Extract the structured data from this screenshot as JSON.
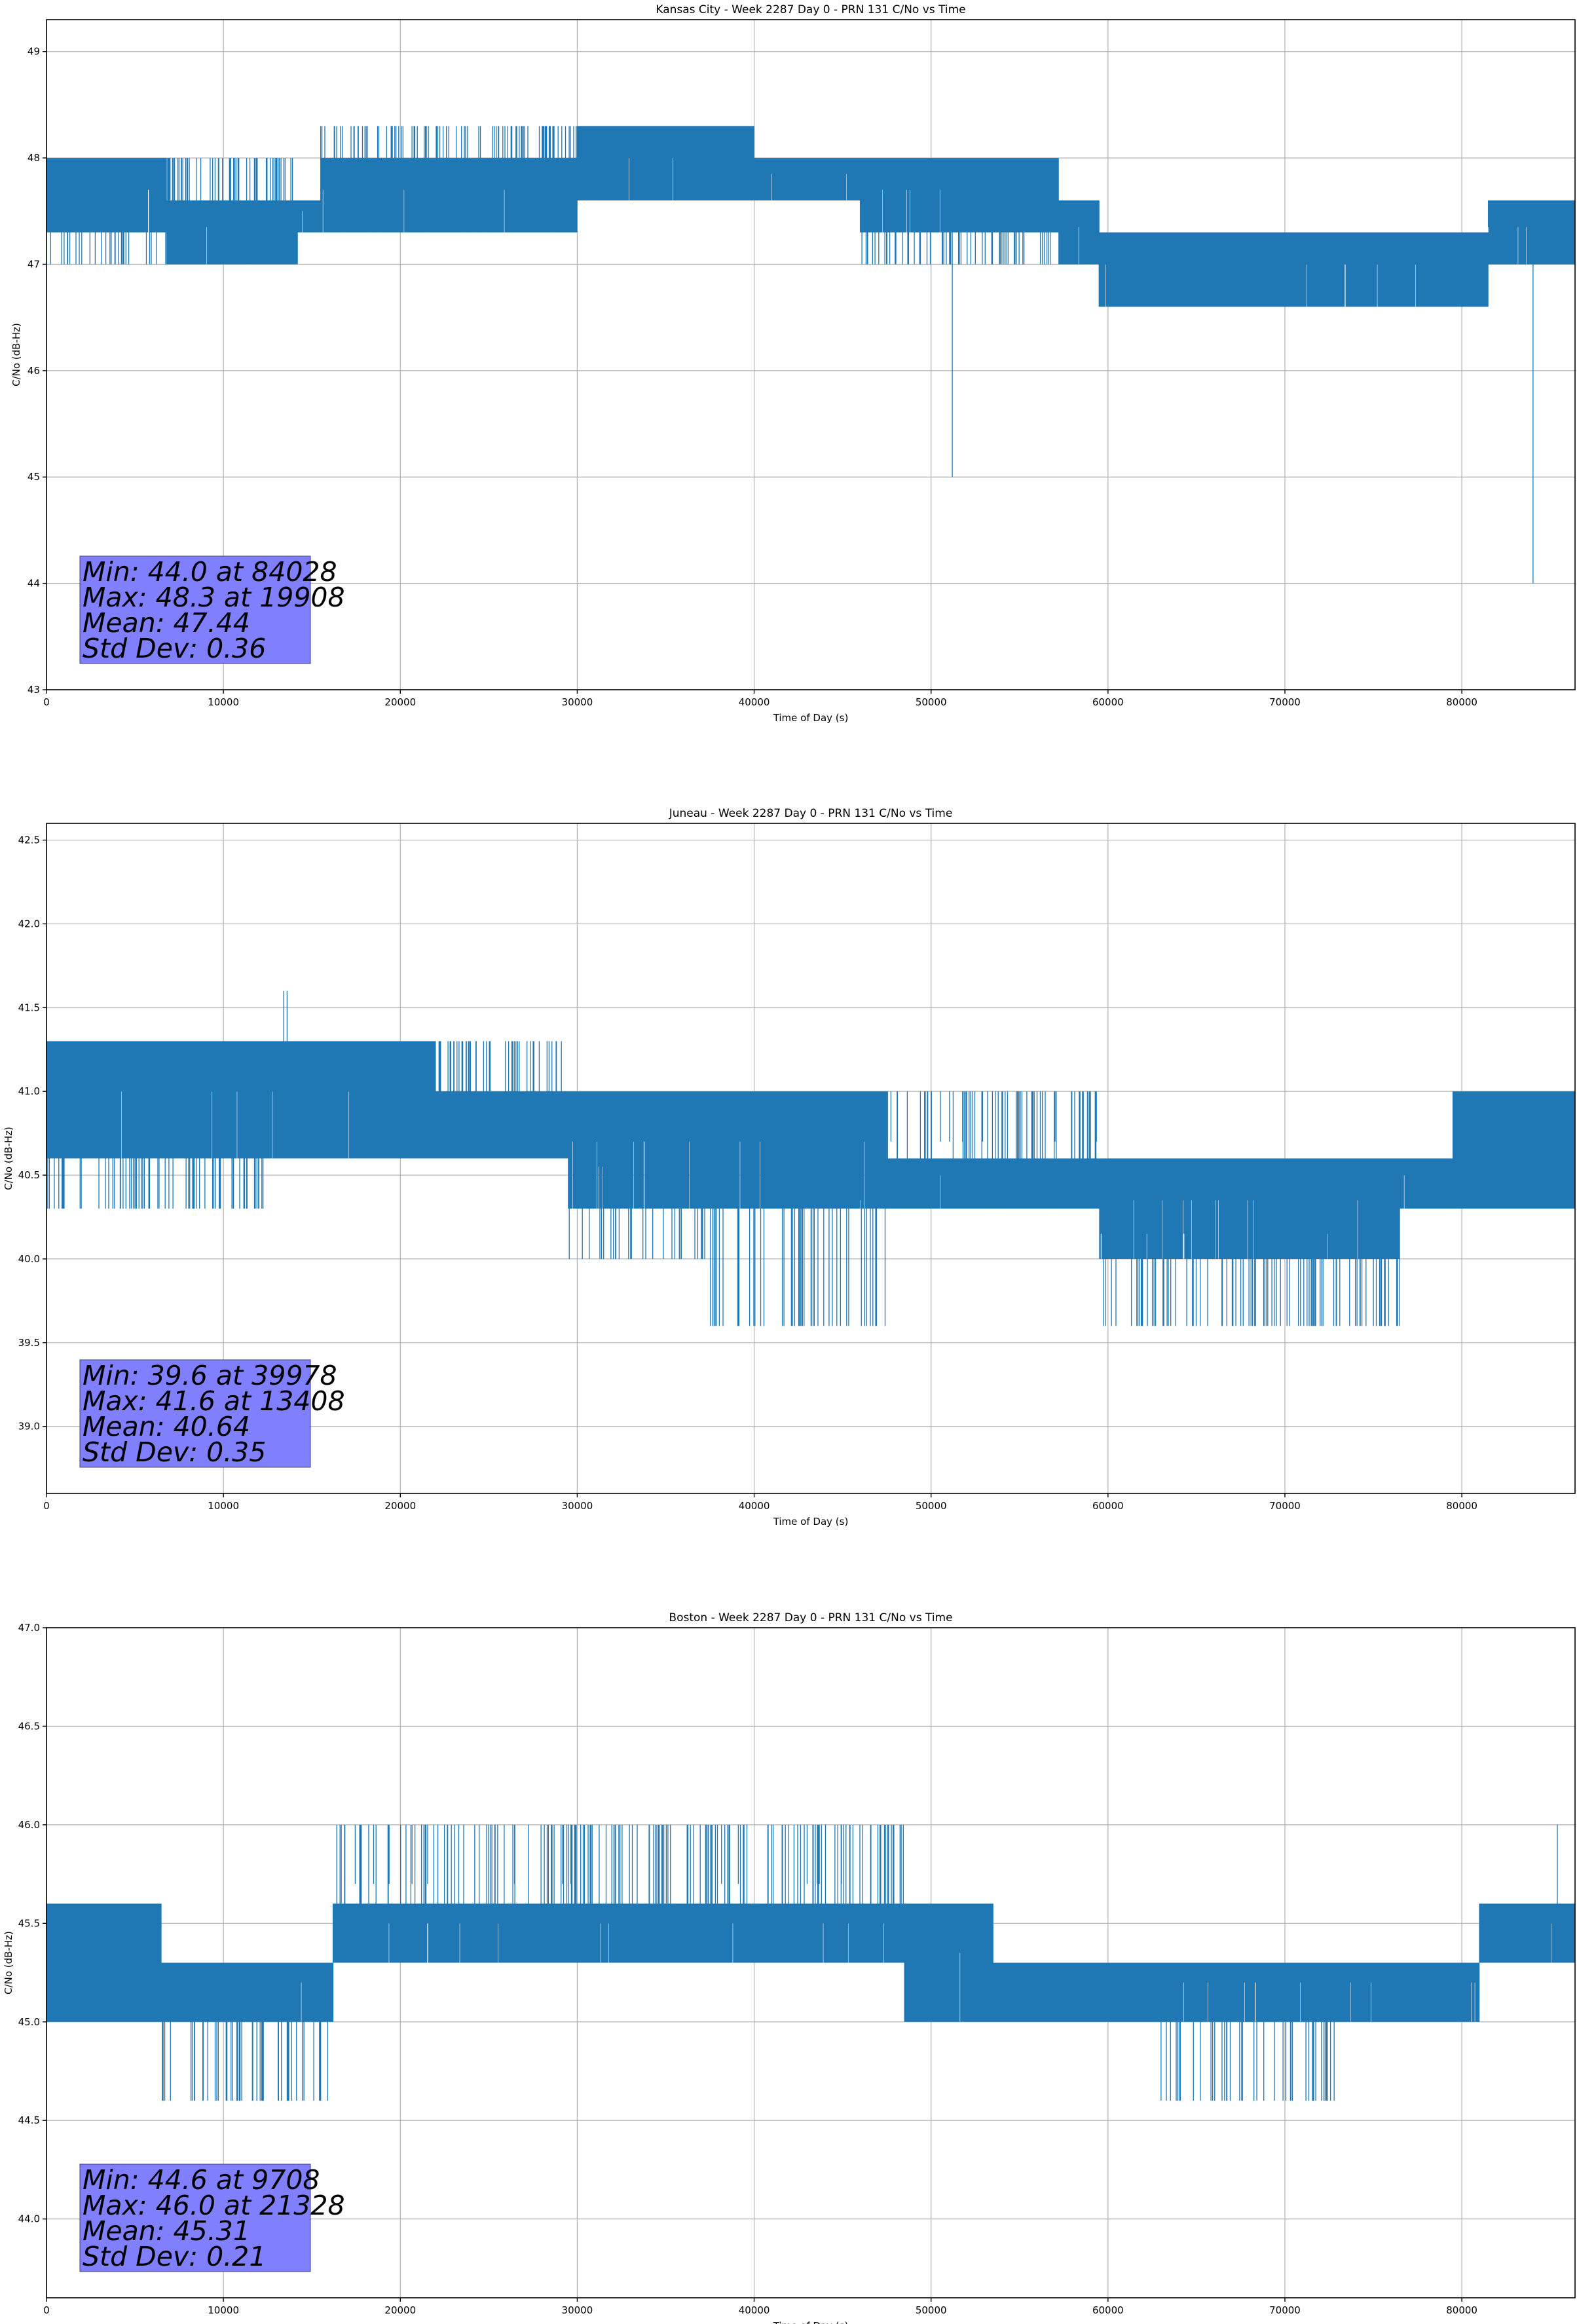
{
  "figure": {
    "background": "#ffffff",
    "series_color": "#1f77b4",
    "stats_box_color": "#8080ff"
  },
  "chart_data": [
    {
      "type": "line",
      "title": "Kansas City - Week 2287 Day 0 - PRN 131 C/No vs Time",
      "xlabel": "Time of Day (s)",
      "ylabel": "C/No (dB-Hz)",
      "xlim": [
        0,
        86400
      ],
      "ylim": [
        43,
        49.3
      ],
      "xticks": [
        0,
        10000,
        20000,
        30000,
        40000,
        50000,
        60000,
        70000,
        80000
      ],
      "yticks": [
        43,
        44,
        45,
        46,
        47,
        48,
        49
      ],
      "ytick_decimals": 0,
      "grid": true,
      "stats": [
        "Min: 44.0 at 84028",
        "Max: 48.3 at 19908",
        "Mean: 47.44",
        "Std Dev: 0.36"
      ],
      "series": [
        {
          "color": "#1f77b4",
          "bands": [
            {
              "x": [
                0,
                6800
              ],
              "low": 47.3,
              "high": 48.0,
              "sparse_low": 47.0
            },
            {
              "x": [
                6800,
                14200
              ],
              "low": 47.0,
              "high": 47.6,
              "sparse_high": 48.0
            },
            {
              "x": [
                14200,
                15500
              ],
              "low": 47.3,
              "high": 47.6
            },
            {
              "x": [
                15500,
                30000
              ],
              "low": 47.3,
              "high": 48.0,
              "sparse_high": 48.3
            },
            {
              "x": [
                30000,
                40000
              ],
              "low": 47.6,
              "high": 48.3
            },
            {
              "x": [
                40000,
                46000
              ],
              "low": 47.6,
              "high": 48.0
            },
            {
              "x": [
                46000,
                57200
              ],
              "low": 47.3,
              "high": 48.0,
              "sparse_low": 47.0
            },
            {
              "x": [
                57200,
                59500
              ],
              "low": 47.0,
              "high": 47.6
            },
            {
              "x": [
                59500,
                81500
              ],
              "low": 46.6,
              "high": 47.3
            },
            {
              "x": [
                81500,
                86400
              ],
              "low": 47.0,
              "high": 47.6
            }
          ],
          "spikes": [
            {
              "x": 51200,
              "low": 45.0,
              "high": 47.6
            },
            {
              "x": 84028,
              "low": 44.0,
              "high": 47.3
            },
            {
              "x": 19908,
              "low": 47.6,
              "high": 48.3
            },
            {
              "x": 23800,
              "low": 47.6,
              "high": 48.3
            }
          ]
        }
      ]
    },
    {
      "type": "line",
      "title": "Juneau - Week 2287 Day 0 - PRN 131 C/No vs Time",
      "xlabel": "Time of Day (s)",
      "ylabel": "C/No (dB-Hz)",
      "xlim": [
        0,
        86400
      ],
      "ylim": [
        38.6,
        42.6
      ],
      "xticks": [
        0,
        10000,
        20000,
        30000,
        40000,
        50000,
        60000,
        70000,
        80000
      ],
      "yticks": [
        39.0,
        39.5,
        40.0,
        40.5,
        41.0,
        41.5,
        42.0,
        42.5
      ],
      "ytick_decimals": 1,
      "grid": true,
      "stats": [
        "Min: 39.6 at 39978",
        "Max: 41.6 at 13408",
        "Mean: 40.64",
        "Std Dev: 0.35"
      ],
      "series": [
        {
          "color": "#1f77b4",
          "bands": [
            {
              "x": [
                0,
                12500
              ],
              "low": 40.6,
              "high": 41.3,
              "sparse_low": 40.3
            },
            {
              "x": [
                12500,
                22000
              ],
              "low": 40.6,
              "high": 41.3
            },
            {
              "x": [
                22000,
                29500
              ],
              "low": 40.6,
              "high": 41.0,
              "sparse_high": 41.3
            },
            {
              "x": [
                29500,
                37500
              ],
              "low": 40.3,
              "high": 41.0,
              "sparse_low": 40.0
            },
            {
              "x": [
                37500,
                47500
              ],
              "low": 40.3,
              "high": 41.0,
              "sparse_low": 39.6
            },
            {
              "x": [
                47500,
                59500
              ],
              "low": 40.3,
              "high": 40.6,
              "sparse_high": 41.0
            },
            {
              "x": [
                59500,
                76500
              ],
              "low": 40.0,
              "high": 40.6,
              "sparse_low": 39.6
            },
            {
              "x": [
                76500,
                79500
              ],
              "low": 40.3,
              "high": 40.6
            },
            {
              "x": [
                79500,
                86400
              ],
              "low": 40.3,
              "high": 41.0
            }
          ],
          "spikes": [
            {
              "x": 13408,
              "low": 41.3,
              "high": 41.6
            },
            {
              "x": 13600,
              "low": 41.3,
              "high": 41.6
            },
            {
              "x": 39978,
              "low": 39.6,
              "high": 40.3
            }
          ]
        }
      ]
    },
    {
      "type": "line",
      "title": "Boston - Week 2287 Day 0 - PRN 131 C/No vs Time",
      "xlabel": "Time of Day (s)",
      "ylabel": "C/No (dB-Hz)",
      "xlim": [
        0,
        86400
      ],
      "ylim": [
        43.6,
        47.0
      ],
      "xticks": [
        0,
        10000,
        20000,
        30000,
        40000,
        50000,
        60000,
        70000,
        80000
      ],
      "yticks": [
        44.0,
        44.5,
        45.0,
        45.5,
        46.0,
        46.5,
        47.0
      ],
      "ytick_decimals": 1,
      "grid": true,
      "stats": [
        "Min: 44.6 at 9708",
        "Max: 46.0 at 21328",
        "Mean: 45.31",
        "Std Dev: 0.21"
      ],
      "series": [
        {
          "color": "#1f77b4",
          "bands": [
            {
              "x": [
                0,
                6500
              ],
              "low": 45.0,
              "high": 45.6
            },
            {
              "x": [
                6500,
                16200
              ],
              "low": 45.0,
              "high": 45.3,
              "sparse_low": 44.6
            },
            {
              "x": [
                16200,
                48500
              ],
              "low": 45.3,
              "high": 45.6,
              "sparse_high": 46.0
            },
            {
              "x": [
                48500,
                53500
              ],
              "low": 45.0,
              "high": 45.6
            },
            {
              "x": [
                53500,
                63000
              ],
              "low": 45.0,
              "high": 45.3
            },
            {
              "x": [
                63000,
                73000
              ],
              "low": 45.0,
              "high": 45.3,
              "sparse_low": 44.6
            },
            {
              "x": [
                73000,
                81000
              ],
              "low": 45.0,
              "high": 45.3
            },
            {
              "x": [
                81000,
                86400
              ],
              "low": 45.3,
              "high": 45.6
            }
          ],
          "spikes": [
            {
              "x": 21328,
              "low": 45.6,
              "high": 46.0
            },
            {
              "x": 85400,
              "low": 45.6,
              "high": 46.0
            },
            {
              "x": 9708,
              "low": 44.6,
              "high": 45.0
            }
          ]
        }
      ]
    }
  ]
}
